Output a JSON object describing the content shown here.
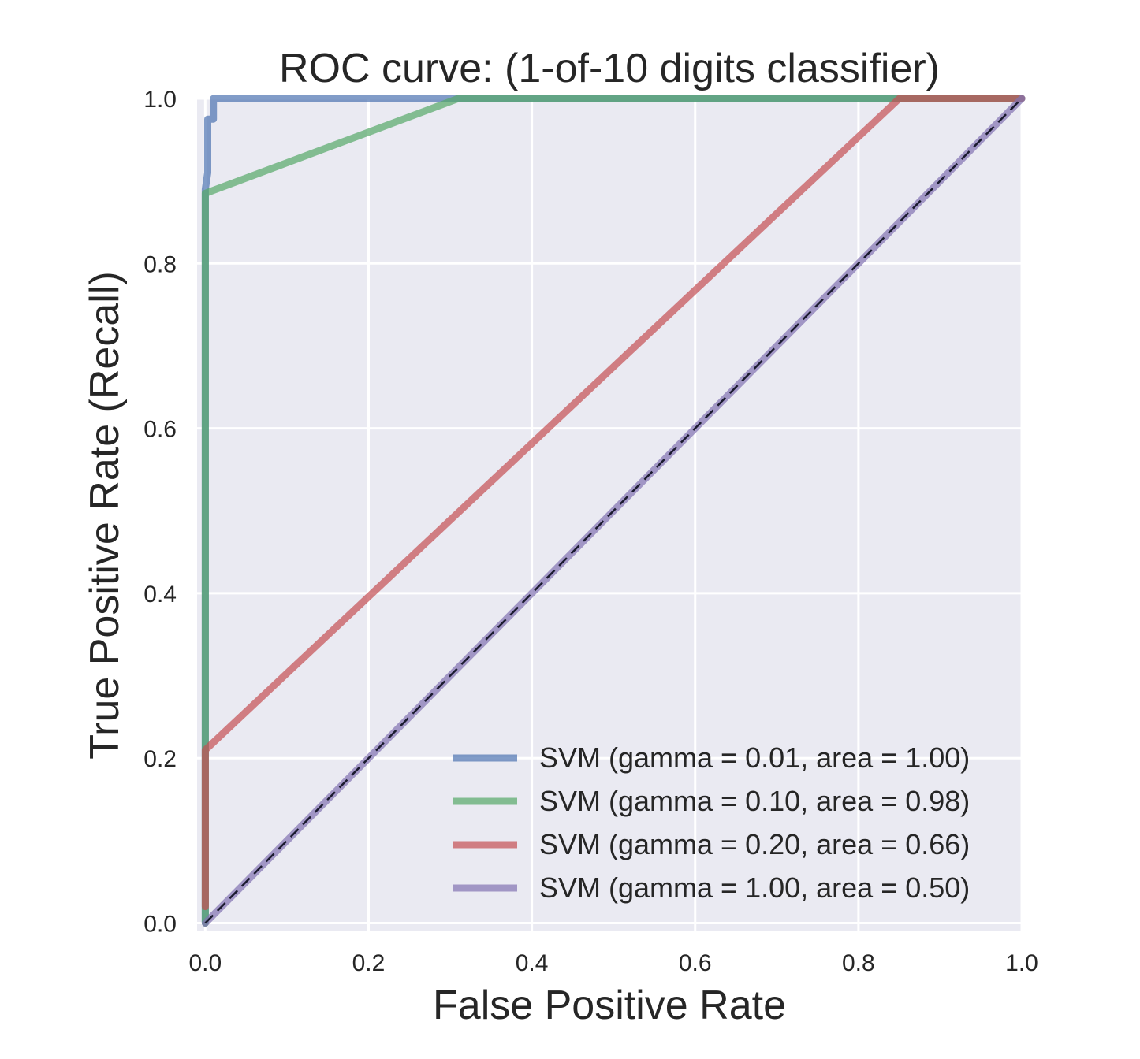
{
  "chart_data": {
    "type": "line",
    "title": "ROC curve: (1-of-10 digits classifier)",
    "xlabel": "False Positive Rate",
    "ylabel": "True Positive Rate (Recall)",
    "xlim": [
      -0.01,
      1.0
    ],
    "ylim": [
      -0.01,
      1.0
    ],
    "xticks": [
      "0.0",
      "0.2",
      "0.4",
      "0.6",
      "0.8",
      "1.0"
    ],
    "yticks": [
      "0.0",
      "0.2",
      "0.4",
      "0.6",
      "0.8",
      "1.0"
    ],
    "xtick_values": [
      0,
      0.2,
      0.4,
      0.6,
      0.8,
      1.0
    ],
    "ytick_values": [
      0,
      0.2,
      0.4,
      0.6,
      0.8,
      1.0
    ],
    "grid": true,
    "legend_position": "bottom-right",
    "background_color": "#eaeaf2",
    "series": [
      {
        "name": "SVM (gamma = 0.01, area = 1.00)",
        "color": "#4c72b0",
        "x": [
          0.0,
          0.0,
          0.003,
          0.003,
          0.003,
          0.003,
          0.01,
          0.01,
          0.01,
          0.01,
          0.01,
          1.0
        ],
        "y": [
          0.0,
          0.89,
          0.91,
          0.91,
          0.95,
          0.975,
          0.975,
          0.975,
          0.99,
          1.0,
          1.0,
          1.0
        ]
      },
      {
        "name": "SVM (gamma = 0.10, area = 0.98)",
        "color": "#55a868",
        "x": [
          0.0,
          0.0,
          0.31,
          1.0
        ],
        "y": [
          0.0,
          0.885,
          1.0,
          1.0
        ]
      },
      {
        "name": "SVM (gamma = 0.20, area = 0.66)",
        "color": "#c44e52",
        "x": [
          0.0,
          0.0,
          0.85,
          1.0
        ],
        "y": [
          0.02,
          0.21,
          1.0,
          1.0
        ]
      },
      {
        "name": "SVM (gamma = 1.00, area = 0.50)",
        "color": "#8172b2",
        "x": [
          0.0,
          1.0
        ],
        "y": [
          0.0,
          1.0
        ]
      }
    ],
    "reference_line": {
      "x": [
        0.0,
        1.0
      ],
      "y": [
        0.0,
        1.0
      ],
      "color": "#1a1a2e",
      "style": "dashed"
    }
  }
}
